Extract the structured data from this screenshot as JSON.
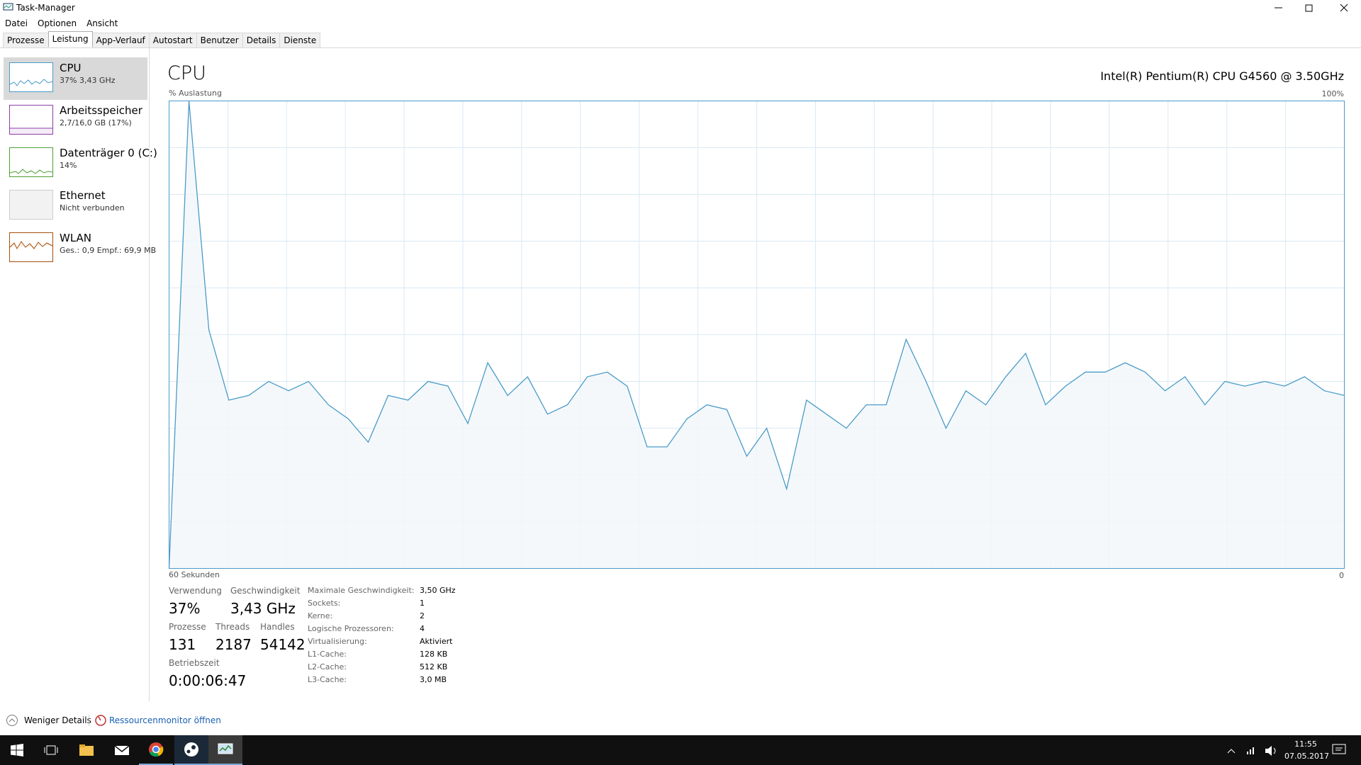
{
  "window": {
    "title": "Task-Manager"
  },
  "menu": [
    "Datei",
    "Optionen",
    "Ansicht"
  ],
  "tabs": [
    "Prozesse",
    "Leistung",
    "App-Verlauf",
    "Autostart",
    "Benutzer",
    "Details",
    "Dienste"
  ],
  "sidebar": [
    {
      "name": "CPU",
      "detail": "37% 3,43 GHz"
    },
    {
      "name": "Arbeitsspeicher",
      "detail": "2,7/16,0 GB (17%)"
    },
    {
      "name": "Datenträger 0 (C:)",
      "detail": "14%"
    },
    {
      "name": "Ethernet",
      "detail": "Nicht verbunden"
    },
    {
      "name": "WLAN",
      "detail": "Ges.: 0,9 Empf.: 69,9 MB"
    }
  ],
  "header": {
    "title": "CPU",
    "model": "Intel(R) Pentium(R) CPU G4560 @ 3.50GHz"
  },
  "chart_data": {
    "type": "line",
    "ylabel": "% Auslastung",
    "xlabel": "60 Sekunden",
    "color": "#4a9bc8",
    "fill": "#f1f6fa",
    "grid": true,
    "ylim": [
      0,
      100
    ],
    "yticks": [
      {
        "value": 100,
        "label": "100%"
      },
      0
    ],
    "values": [
      0,
      100,
      51,
      36,
      37,
      40,
      38,
      40,
      35,
      32,
      27,
      37,
      36,
      40,
      39,
      31,
      44,
      37,
      41,
      33,
      35,
      41,
      42,
      39,
      26,
      26,
      32,
      35,
      34,
      24,
      30,
      17,
      36,
      33,
      30,
      35,
      35,
      49,
      40,
      30,
      38,
      35,
      41,
      46,
      35,
      39,
      42,
      42,
      44,
      42,
      38,
      41,
      35,
      40,
      39,
      40,
      39,
      41,
      38,
      37
    ]
  },
  "stats": [
    {
      "label": "Verwendung",
      "value": "37%"
    },
    {
      "label": "Geschwindigkeit",
      "value": "3,43 GHz"
    },
    {
      "label": "Prozesse",
      "value": "131"
    },
    {
      "label": "Threads",
      "value": "2187"
    },
    {
      "label": "Handles",
      "value": "54142"
    },
    {
      "label": "Betriebszeit",
      "value": "0:00:06:47"
    }
  ],
  "specs": [
    [
      "Maximale Geschwindigkeit:",
      "3,50 GHz"
    ],
    [
      "Sockets:",
      "1"
    ],
    [
      "Kerne:",
      "2"
    ],
    [
      "Logische Prozessoren:",
      "4"
    ],
    [
      "Virtualisierung:",
      "Aktiviert"
    ],
    [
      "L1-Cache:",
      "128 KB"
    ],
    [
      "L2-Cache:",
      "512 KB"
    ],
    [
      "L3-Cache:",
      "3,0 MB"
    ]
  ],
  "footer": {
    "less": "Weniger Details",
    "monitor": "Ressourcenmonitor öffnen"
  },
  "taskbar": {
    "time": "11:55",
    "date": "07.05.2017"
  }
}
